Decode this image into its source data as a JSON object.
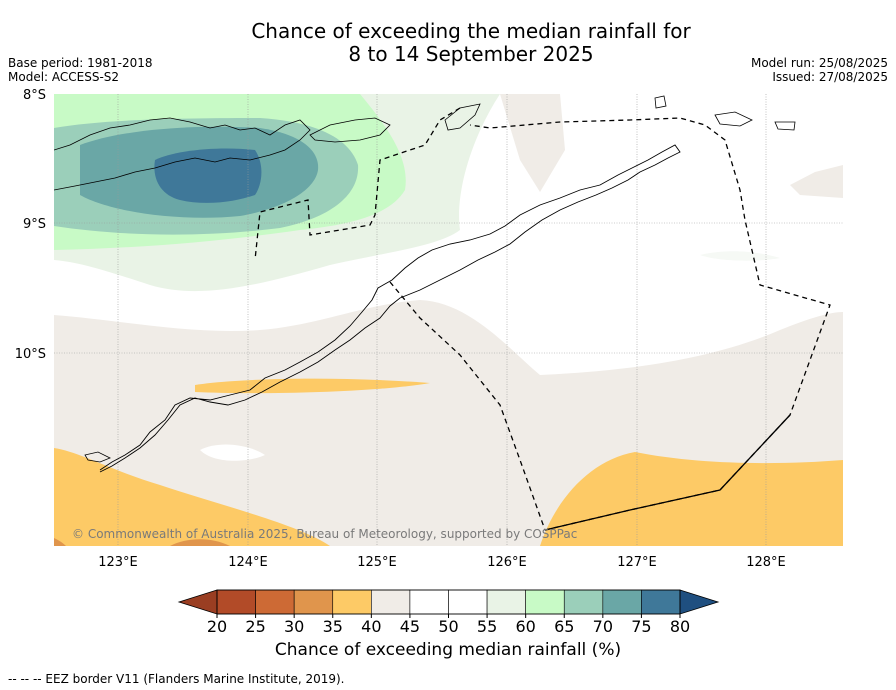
{
  "title": {
    "line1": "Chance of exceeding the median rainfall for",
    "line2": "8 to 14 September 2025"
  },
  "meta_left": {
    "base_period": "Base period: 1981-2018",
    "model": "Model: ACCESS-S2"
  },
  "meta_right": {
    "model_run": "Model run: 25/08/2025",
    "issued": "Issued: 27/08/2025"
  },
  "map": {
    "lat_labels": [
      "8°S",
      "9°S",
      "10°S"
    ],
    "lon_labels": [
      "123°E",
      "124°E",
      "125°E",
      "126°E",
      "127°E",
      "128°E"
    ],
    "copyright": "© Commonwealth of Australia 2025, Bureau of Meteorology, supported by COSPPac"
  },
  "colorbar": {
    "ticks": [
      "20",
      "25",
      "30",
      "35",
      "40",
      "45",
      "50",
      "55",
      "60",
      "65",
      "70",
      "75",
      "80"
    ],
    "colors": [
      "#b24b28",
      "#cd6a35",
      "#e0954c",
      "#fdca66",
      "#f0ece7",
      "#ffffff",
      "#ffffff",
      "#e9f3e6",
      "#c8fac6",
      "#9bcfba",
      "#6aa7a6",
      "#3f7899"
    ],
    "under_color": "#9a3e22",
    "over_color": "#1f4f80",
    "label": "Chance of exceeding median rainfall (%)"
  },
  "footnote": "-- -- -- EEZ border V11 (Flanders Marine Institute, 2019)."
}
